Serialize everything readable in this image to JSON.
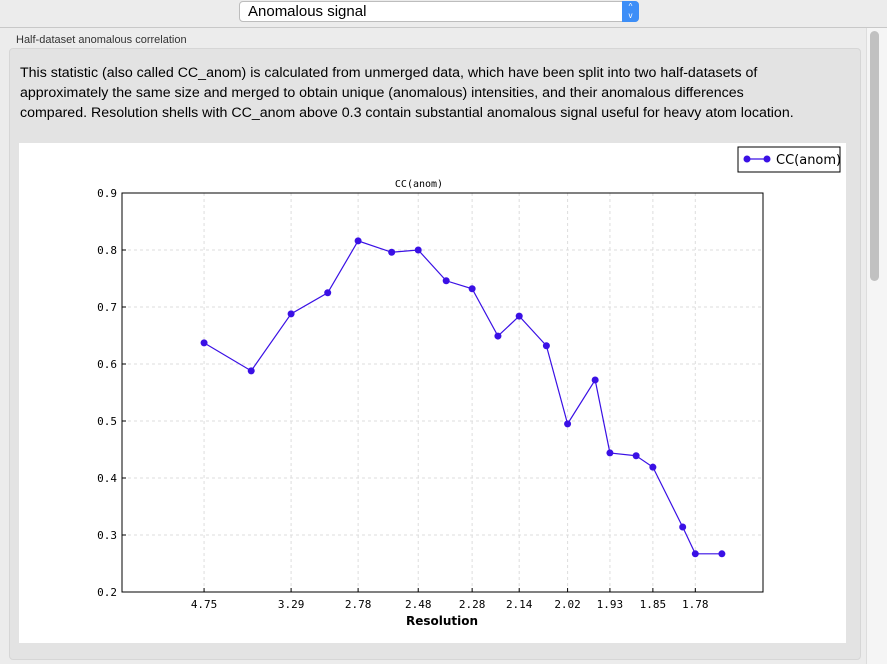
{
  "selector": {
    "value": "Anomalous signal",
    "icon": "up-down-arrows-icon"
  },
  "group": {
    "label": "Half-dataset anomalous correlation",
    "description": "This statistic (also called CC_anom) is calculated from unmerged data, which have been split into two half-datasets of approximately the same size and merged to obtain unique (anomalous) intensities, and their anomalous differences compared.  Resolution shells with CC_anom above 0.3 contain substantial anomalous signal useful for heavy atom location."
  },
  "chart_data": {
    "type": "line",
    "title": "CC(anom)",
    "xlabel": "Resolution",
    "ylabel": "",
    "ylim": [
      0.2,
      0.9
    ],
    "yticks": [
      "0.2",
      "0.3",
      "0.4",
      "0.5",
      "0.6",
      "0.7",
      "0.8",
      "0.9"
    ],
    "xticks": [
      "4.75",
      "3.29",
      "2.78",
      "2.48",
      "2.28",
      "2.14",
      "2.02",
      "1.93",
      "1.85",
      "1.78"
    ],
    "x_scale": "1/d^2",
    "grid": true,
    "legend": "top-right",
    "color": "#3a10e5",
    "series": [
      {
        "name": "CC(anom)",
        "x": [
          4.75,
          3.77,
          3.29,
          2.98,
          2.78,
          2.6,
          2.48,
          2.37,
          2.28,
          2.2,
          2.14,
          2.07,
          2.02,
          1.96,
          1.93,
          1.88,
          1.85,
          1.8,
          1.78,
          1.74
        ],
        "values": [
          0.637,
          0.588,
          0.688,
          0.725,
          0.816,
          0.796,
          0.8,
          0.746,
          0.732,
          0.649,
          0.684,
          0.632,
          0.495,
          0.572,
          0.444,
          0.439,
          0.419,
          0.314,
          0.267,
          0.267
        ]
      }
    ]
  }
}
